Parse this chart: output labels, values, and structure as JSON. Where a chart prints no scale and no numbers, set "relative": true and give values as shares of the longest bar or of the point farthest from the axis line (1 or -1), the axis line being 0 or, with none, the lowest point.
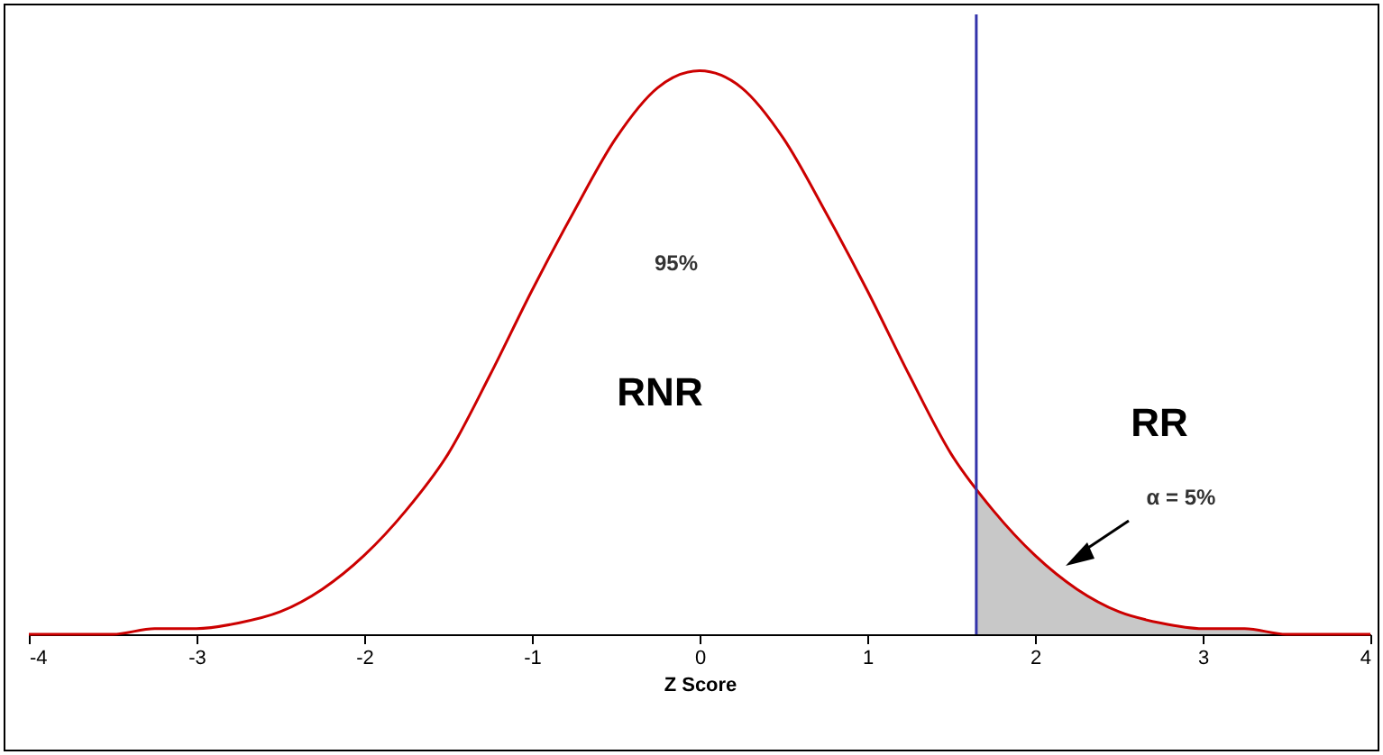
{
  "chart_data": {
    "type": "line",
    "xlabel": "Z Score",
    "relative": true,
    "xlim": [
      -4,
      4
    ],
    "xticks": [
      -4,
      -3,
      -2,
      -1,
      0,
      1,
      2,
      3,
      4
    ],
    "tick_labels": "x",
    "grid": false,
    "legend": false,
    "marker": "none",
    "series": [
      {
        "type": "area",
        "color": "#c8c8c8",
        "x": [
          1.65,
          1.75,
          2,
          2.25,
          2.5,
          2.75,
          3,
          3.25,
          3.5,
          3.75,
          4
        ],
        "values": [
          0.26,
          0.22,
          0.14,
          0.08,
          0.04,
          0.02,
          0.01,
          0.01,
          0,
          0,
          0
        ]
      },
      {
        "color": "#cc0000",
        "x": [
          -4,
          -3.75,
          -3.5,
          -3.25,
          -3,
          -2.75,
          -2.5,
          -2.25,
          -2,
          -1.75,
          -1.5,
          -1.25,
          -1,
          -0.75,
          -0.5,
          -0.25,
          0,
          0.25,
          0.5,
          0.75,
          1,
          1.25,
          1.5,
          1.75,
          2,
          2.25,
          2.5,
          2.75,
          3,
          3.25,
          3.5,
          3.75,
          4
        ],
        "values": [
          0,
          0,
          0,
          0.01,
          0.01,
          0.02,
          0.04,
          0.08,
          0.14,
          0.22,
          0.32,
          0.46,
          0.61,
          0.75,
          0.88,
          0.97,
          1,
          0.97,
          0.88,
          0.75,
          0.61,
          0.46,
          0.32,
          0.22,
          0.14,
          0.08,
          0.04,
          0.02,
          0.01,
          0.01,
          0,
          0,
          0
        ]
      }
    ],
    "ref_lines": [
      {
        "axis": "x",
        "value": 1.65,
        "color": "#3333aa"
      }
    ],
    "annotations": [
      "95%",
      "RNR",
      "RR",
      "α = 5%"
    ]
  }
}
